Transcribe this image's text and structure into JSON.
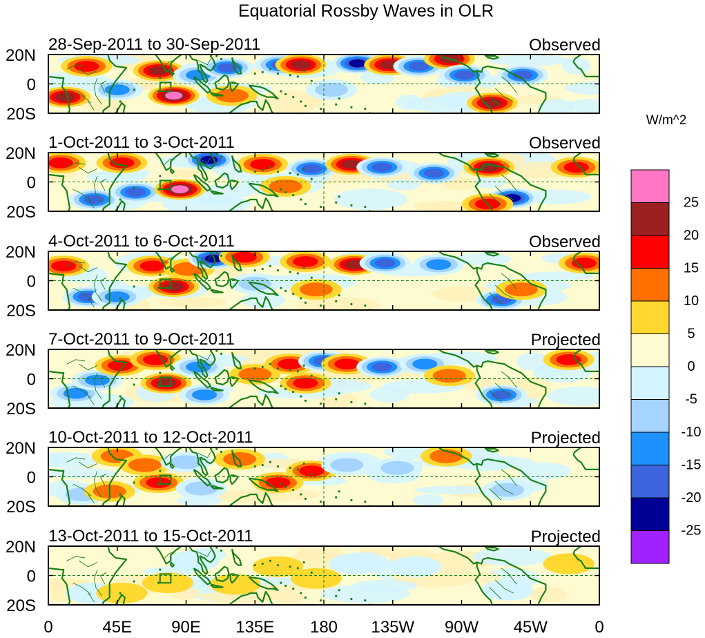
{
  "figure": {
    "title": "Equatorial Rossby Waves in OLR",
    "units_label": "W/m^2"
  },
  "panels": [
    {
      "date_range": "28-Sep-2011 to 30-Sep-2011",
      "status": "Observed",
      "amplitude": 1.0,
      "features": [
        [
          25,
          12,
          0.55,
          "+"
        ],
        [
          11,
          -9,
          0.8,
          "+"
        ],
        [
          82,
          -8,
          0.9,
          "+"
        ],
        [
          72,
          9,
          0.7,
          "+"
        ],
        [
          98,
          6,
          0.6,
          "-"
        ],
        [
          117,
          11,
          0.7,
          "-"
        ],
        [
          152,
          13,
          0.85,
          "-"
        ],
        [
          165,
          13,
          0.8,
          "+"
        ],
        [
          202,
          14,
          1.0,
          "-"
        ],
        [
          223,
          13,
          0.8,
          "+"
        ],
        [
          242,
          12,
          0.7,
          "-"
        ],
        [
          262,
          17,
          0.8,
          "+"
        ],
        [
          272,
          6,
          0.7,
          "-"
        ],
        [
          290,
          -13,
          0.85,
          "+"
        ],
        [
          310,
          6,
          0.7,
          "-"
        ],
        [
          45,
          -4,
          0.5,
          "-"
        ],
        [
          185,
          -4,
          0.4,
          "-"
        ],
        [
          120,
          -8,
          0.4,
          "+"
        ]
      ]
    },
    {
      "date_range": "1-Oct-2011 to 3-Oct-2011",
      "status": "Observed",
      "amplitude": 1.0,
      "features": [
        [
          8,
          13,
          0.6,
          "+"
        ],
        [
          30,
          -12,
          0.8,
          "-"
        ],
        [
          48,
          13,
          0.6,
          "+"
        ],
        [
          57,
          -7,
          0.7,
          "-"
        ],
        [
          86,
          -5,
          0.9,
          "+"
        ],
        [
          105,
          15,
          0.9,
          "-"
        ],
        [
          140,
          12,
          0.6,
          "+"
        ],
        [
          172,
          9,
          0.7,
          "-"
        ],
        [
          198,
          12,
          0.8,
          "+"
        ],
        [
          218,
          10,
          0.8,
          "-"
        ],
        [
          252,
          6,
          0.7,
          "-"
        ],
        [
          288,
          10,
          0.7,
          "+"
        ],
        [
          303,
          -11,
          0.9,
          "-"
        ],
        [
          287,
          -15,
          0.6,
          "+"
        ],
        [
          345,
          10,
          0.5,
          "+"
        ],
        [
          155,
          -3,
          0.45,
          "+"
        ]
      ]
    },
    {
      "date_range": "4-Oct-2011 to 6-Oct-2011",
      "status": "Observed",
      "amplitude": 0.95,
      "features": [
        [
          10,
          10,
          0.6,
          "+"
        ],
        [
          26,
          -11,
          0.8,
          "-"
        ],
        [
          45,
          -11,
          0.6,
          "-"
        ],
        [
          68,
          10,
          0.6,
          "+"
        ],
        [
          82,
          -4,
          0.9,
          "+"
        ],
        [
          92,
          8,
          0.5,
          "+"
        ],
        [
          108,
          15,
          1.0,
          "-"
        ],
        [
          128,
          16,
          0.7,
          "+"
        ],
        [
          168,
          13,
          0.7,
          "+"
        ],
        [
          200,
          11,
          0.9,
          "+"
        ],
        [
          220,
          12,
          0.8,
          "-"
        ],
        [
          255,
          11,
          0.6,
          "-"
        ],
        [
          296,
          -13,
          0.9,
          "-"
        ],
        [
          309,
          -6,
          0.5,
          "+"
        ],
        [
          350,
          12,
          0.6,
          "+"
        ],
        [
          175,
          -6,
          0.5,
          "+"
        ],
        [
          135,
          -2,
          0.4,
          "-"
        ]
      ]
    },
    {
      "date_range": "7-Oct-2011 to 9-Oct-2011",
      "status": "Projected",
      "amplitude": 0.85,
      "features": [
        [
          18,
          -10,
          0.6,
          "-"
        ],
        [
          32,
          -1,
          0.6,
          "-"
        ],
        [
          47,
          9,
          0.6,
          "+"
        ],
        [
          77,
          -3,
          0.9,
          "+"
        ],
        [
          70,
          13,
          0.6,
          "+"
        ],
        [
          98,
          8,
          0.6,
          "-"
        ],
        [
          102,
          -11,
          0.6,
          "-"
        ],
        [
          135,
          3,
          0.5,
          "+"
        ],
        [
          158,
          10,
          0.7,
          "+"
        ],
        [
          168,
          -3,
          0.6,
          "+"
        ],
        [
          180,
          12,
          0.8,
          "-"
        ],
        [
          195,
          10,
          0.6,
          "+"
        ],
        [
          218,
          8,
          0.8,
          "-"
        ],
        [
          246,
          10,
          0.6,
          "-"
        ],
        [
          262,
          2,
          0.5,
          "+"
        ],
        [
          296,
          -11,
          0.8,
          "-"
        ],
        [
          340,
          13,
          0.6,
          "+"
        ]
      ]
    },
    {
      "date_range": "10-Oct-2011 to 12-Oct-2011",
      "status": "Projected",
      "amplitude": 0.75,
      "features": [
        [
          22,
          -12,
          0.6,
          "-"
        ],
        [
          45,
          14,
          0.5,
          "+"
        ],
        [
          63,
          8,
          0.6,
          "+"
        ],
        [
          72,
          -4,
          0.8,
          "+"
        ],
        [
          90,
          10,
          0.6,
          "-"
        ],
        [
          100,
          -8,
          0.5,
          "-"
        ],
        [
          125,
          12,
          0.6,
          "+"
        ],
        [
          150,
          -4,
          0.7,
          "+"
        ],
        [
          172,
          4,
          0.7,
          "+"
        ],
        [
          195,
          8,
          0.5,
          "-"
        ],
        [
          228,
          6,
          0.5,
          "-"
        ],
        [
          260,
          14,
          0.5,
          "+"
        ],
        [
          300,
          -9,
          0.6,
          "-"
        ],
        [
          40,
          -10,
          0.4,
          "+"
        ]
      ]
    },
    {
      "date_range": "13-Oct-2011 to 15-Oct-2011",
      "status": "Projected",
      "amplitude": 0.45,
      "features": [
        [
          28,
          -12,
          0.5,
          "-"
        ],
        [
          48,
          -12,
          0.5,
          "+"
        ],
        [
          78,
          -5,
          0.6,
          "+"
        ],
        [
          95,
          10,
          0.5,
          "-"
        ],
        [
          122,
          -6,
          0.5,
          "+"
        ],
        [
          150,
          6,
          0.5,
          "+"
        ],
        [
          175,
          -2,
          0.5,
          "+"
        ],
        [
          200,
          8,
          0.5,
          "-"
        ],
        [
          240,
          6,
          0.4,
          "-"
        ],
        [
          300,
          -10,
          0.5,
          "-"
        ],
        [
          340,
          8,
          0.4,
          "+"
        ]
      ]
    }
  ],
  "axes": {
    "lat_ticks": [
      "20N",
      "0",
      "20S"
    ],
    "lon_ticks": [
      "0",
      "45E",
      "90E",
      "135E",
      "180",
      "135W",
      "90W",
      "45W",
      "0"
    ]
  },
  "colorbar": {
    "labels": [
      "25",
      "20",
      "15",
      "10",
      "5",
      "0",
      "-5",
      "-10",
      "-15",
      "-20",
      "-25"
    ],
    "colors": [
      "#ff77c4",
      "#9c2020",
      "#ff0000",
      "#ff7000",
      "#ffd830",
      "#fffbd0",
      "#d4f4ff",
      "#a4d4ff",
      "#1e90ff",
      "#3c64dc",
      "#000096",
      "#a022ff"
    ]
  },
  "map_colors": {
    "coast": "#198019",
    "dash": "#198019",
    "region_box": "#198019"
  }
}
